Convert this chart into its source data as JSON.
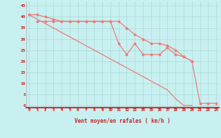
{
  "xlabel": "Vent moyen/en rafales ( km/h )",
  "bg_color": "#c8f0f0",
  "grid_color": "#a8d8d8",
  "line_color": "#f07878",
  "x_ticks": [
    0,
    1,
    2,
    3,
    4,
    5,
    6,
    7,
    8,
    9,
    10,
    11,
    12,
    13,
    14,
    15,
    16,
    17,
    18,
    19,
    20,
    21,
    22,
    23
  ],
  "y_ticks": [
    0,
    5,
    10,
    15,
    20,
    25,
    30,
    35,
    40,
    45
  ],
  "ylim": [
    -1,
    47
  ],
  "xlim": [
    -0.3,
    23.3
  ],
  "line1_x": [
    0,
    1,
    2,
    3,
    4,
    5,
    6,
    7,
    8,
    9,
    10,
    11,
    12,
    13,
    14,
    15,
    16,
    17,
    18,
    19,
    20
  ],
  "line1_y": [
    41,
    41,
    40,
    39,
    38,
    38,
    38,
    38,
    38,
    38,
    38,
    38,
    35,
    32,
    30,
    28,
    28,
    27,
    25,
    22,
    20
  ],
  "line2_x": [
    1,
    2,
    3,
    4,
    5,
    6,
    7,
    8,
    9,
    10,
    11,
    12,
    13,
    14,
    15,
    16,
    17,
    18,
    19,
    20,
    21,
    22,
    23
  ],
  "line2_y": [
    38,
    38,
    38,
    38,
    38,
    38,
    38,
    38,
    38,
    38,
    28,
    23,
    28,
    23,
    23,
    23,
    26,
    23,
    22,
    20,
    1,
    1,
    1
  ],
  "line3_x": [
    0,
    1,
    2,
    3,
    4,
    5,
    6,
    7,
    8,
    9,
    10,
    11,
    12,
    13,
    14,
    15,
    16,
    17,
    18,
    19,
    20
  ],
  "line3_y": [
    41,
    39,
    37,
    35,
    33,
    31,
    29,
    27,
    25,
    23,
    21,
    19,
    17,
    15,
    13,
    11,
    9,
    7,
    3,
    0,
    0
  ]
}
